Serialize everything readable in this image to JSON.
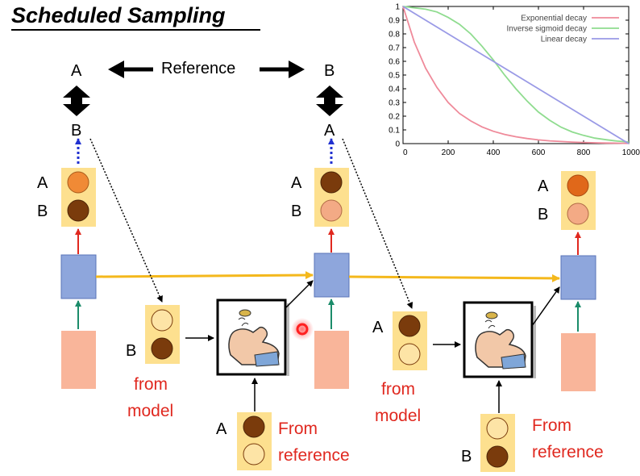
{
  "title": "Scheduled Sampling",
  "reference_label": "Reference",
  "top_left": {
    "upper": "A",
    "lower": "B"
  },
  "top_mid": {
    "upper": "B",
    "lower": "A"
  },
  "output_rows": {
    "a": "A",
    "b": "B"
  },
  "model_input_1_label": "B",
  "model_input_2_label": "A",
  "ref_input_1_label": "A",
  "ref_input_2_label": "B",
  "from_model": {
    "line1": "from",
    "line2": "model"
  },
  "from_reference": {
    "line1": "From",
    "line2": "reference"
  },
  "colors": {
    "highlight": "#fde08f",
    "dark_circle": "#7a3b0c",
    "orange_circle": "#f08a36",
    "pink_circle": "#f3aa85",
    "light_circle": "#fde4a6",
    "hidden_box": "#8ea6dc",
    "input_box": "#f9b59a",
    "red_text": "#e0281f",
    "recurrent_arrow": "#f4b81c"
  },
  "chart_data": {
    "type": "line",
    "title": "",
    "xlabel": "",
    "ylabel": "",
    "xlim": [
      0,
      1000
    ],
    "ylim": [
      0,
      1
    ],
    "x_ticks": [
      0,
      200,
      400,
      600,
      800,
      1000
    ],
    "y_ticks": [
      0,
      0.1,
      0.2,
      0.3,
      0.4,
      0.5,
      0.6,
      0.7,
      0.8,
      0.9,
      1
    ],
    "grid": false,
    "legend_position": "top-right",
    "x": [
      0,
      50,
      100,
      150,
      200,
      250,
      300,
      350,
      400,
      450,
      500,
      550,
      600,
      650,
      700,
      750,
      800,
      850,
      900,
      950,
      1000
    ],
    "series": [
      {
        "name": "Exponential decay",
        "color": "#ef8a9a",
        "values": [
          1.0,
          0.74,
          0.55,
          0.41,
          0.3,
          0.22,
          0.165,
          0.122,
          0.09,
          0.067,
          0.05,
          0.037,
          0.027,
          0.02,
          0.015,
          0.011,
          0.008,
          0.006,
          0.004,
          0.003,
          0.002
        ]
      },
      {
        "name": "Inverse sigmoid decay",
        "color": "#8fdc8f",
        "values": [
          1.0,
          0.99,
          0.98,
          0.96,
          0.92,
          0.87,
          0.8,
          0.71,
          0.61,
          0.5,
          0.4,
          0.31,
          0.23,
          0.17,
          0.12,
          0.085,
          0.06,
          0.04,
          0.028,
          0.018,
          0.012
        ]
      },
      {
        "name": "Linear decay",
        "color": "#9a9ae6",
        "values": [
          1.0,
          0.95,
          0.9,
          0.85,
          0.8,
          0.75,
          0.7,
          0.65,
          0.6,
          0.55,
          0.5,
          0.45,
          0.4,
          0.35,
          0.3,
          0.25,
          0.2,
          0.15,
          0.1,
          0.05,
          0.0
        ]
      }
    ]
  }
}
